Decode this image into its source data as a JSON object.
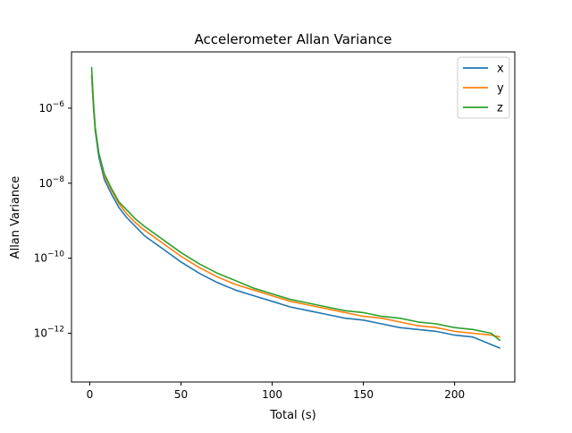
{
  "chart_data": {
    "type": "line",
    "title": "Accelerometer Allan Variance",
    "xlabel": "Total  (s)",
    "ylabel": "Allan Variance",
    "xlim": [
      -10,
      233
    ],
    "ylim_log10": [
      -13.3,
      -4.5
    ],
    "yscale": "log",
    "x_ticks": [
      0,
      50,
      100,
      150,
      200
    ],
    "x_tick_labels": [
      "0",
      "50",
      "100",
      "150",
      "200"
    ],
    "y_ticks_log10": [
      -6,
      -8,
      -10,
      -12
    ],
    "y_tick_labels": [
      {
        "base": "10",
        "exp": "−6"
      },
      {
        "base": "10",
        "exp": "−8"
      },
      {
        "base": "10",
        "exp": "−10"
      },
      {
        "base": "10",
        "exp": "−12"
      }
    ],
    "grid": false,
    "legend_position": "upper-right",
    "series": [
      {
        "name": "x",
        "color": "#1f77b4",
        "x": [
          1,
          2,
          3,
          5,
          8,
          12,
          16,
          20,
          25,
          30,
          40,
          50,
          60,
          70,
          80,
          90,
          100,
          110,
          120,
          130,
          140,
          150,
          160,
          170,
          180,
          190,
          200,
          210,
          220,
          225
        ],
        "y_log10": [
          -5.15,
          -5.95,
          -6.6,
          -7.3,
          -7.9,
          -8.3,
          -8.65,
          -8.9,
          -9.15,
          -9.4,
          -9.75,
          -10.1,
          -10.4,
          -10.65,
          -10.85,
          -11.0,
          -11.15,
          -11.3,
          -11.4,
          -11.5,
          -11.6,
          -11.65,
          -11.75,
          -11.85,
          -11.9,
          -11.95,
          -12.05,
          -12.1,
          -12.3,
          -12.4
        ]
      },
      {
        "name": "y",
        "color": "#ff7f0e",
        "x": [
          1,
          2,
          3,
          5,
          8,
          12,
          16,
          20,
          25,
          30,
          40,
          50,
          60,
          70,
          80,
          90,
          100,
          110,
          120,
          130,
          140,
          150,
          160,
          170,
          180,
          190,
          200,
          210,
          220,
          225
        ],
        "y_log10": [
          -5.1,
          -5.9,
          -6.55,
          -7.2,
          -7.8,
          -8.2,
          -8.55,
          -8.8,
          -9.05,
          -9.25,
          -9.6,
          -9.95,
          -10.25,
          -10.5,
          -10.7,
          -10.85,
          -11.0,
          -11.15,
          -11.25,
          -11.35,
          -11.45,
          -11.55,
          -11.6,
          -11.7,
          -11.8,
          -11.85,
          -11.95,
          -12.0,
          -12.05,
          -12.1
        ]
      },
      {
        "name": "z",
        "color": "#2ca02c",
        "x": [
          1,
          2,
          3,
          5,
          8,
          12,
          16,
          20,
          25,
          30,
          40,
          50,
          60,
          70,
          80,
          90,
          100,
          110,
          120,
          130,
          140,
          150,
          160,
          170,
          180,
          190,
          200,
          210,
          220,
          225
        ],
        "y_log10": [
          -4.9,
          -5.8,
          -6.5,
          -7.2,
          -7.75,
          -8.15,
          -8.5,
          -8.7,
          -8.95,
          -9.15,
          -9.5,
          -9.85,
          -10.15,
          -10.4,
          -10.6,
          -10.8,
          -10.95,
          -11.1,
          -11.2,
          -11.3,
          -11.4,
          -11.45,
          -11.55,
          -11.6,
          -11.7,
          -11.75,
          -11.85,
          -11.9,
          -12.0,
          -12.2
        ]
      }
    ]
  }
}
